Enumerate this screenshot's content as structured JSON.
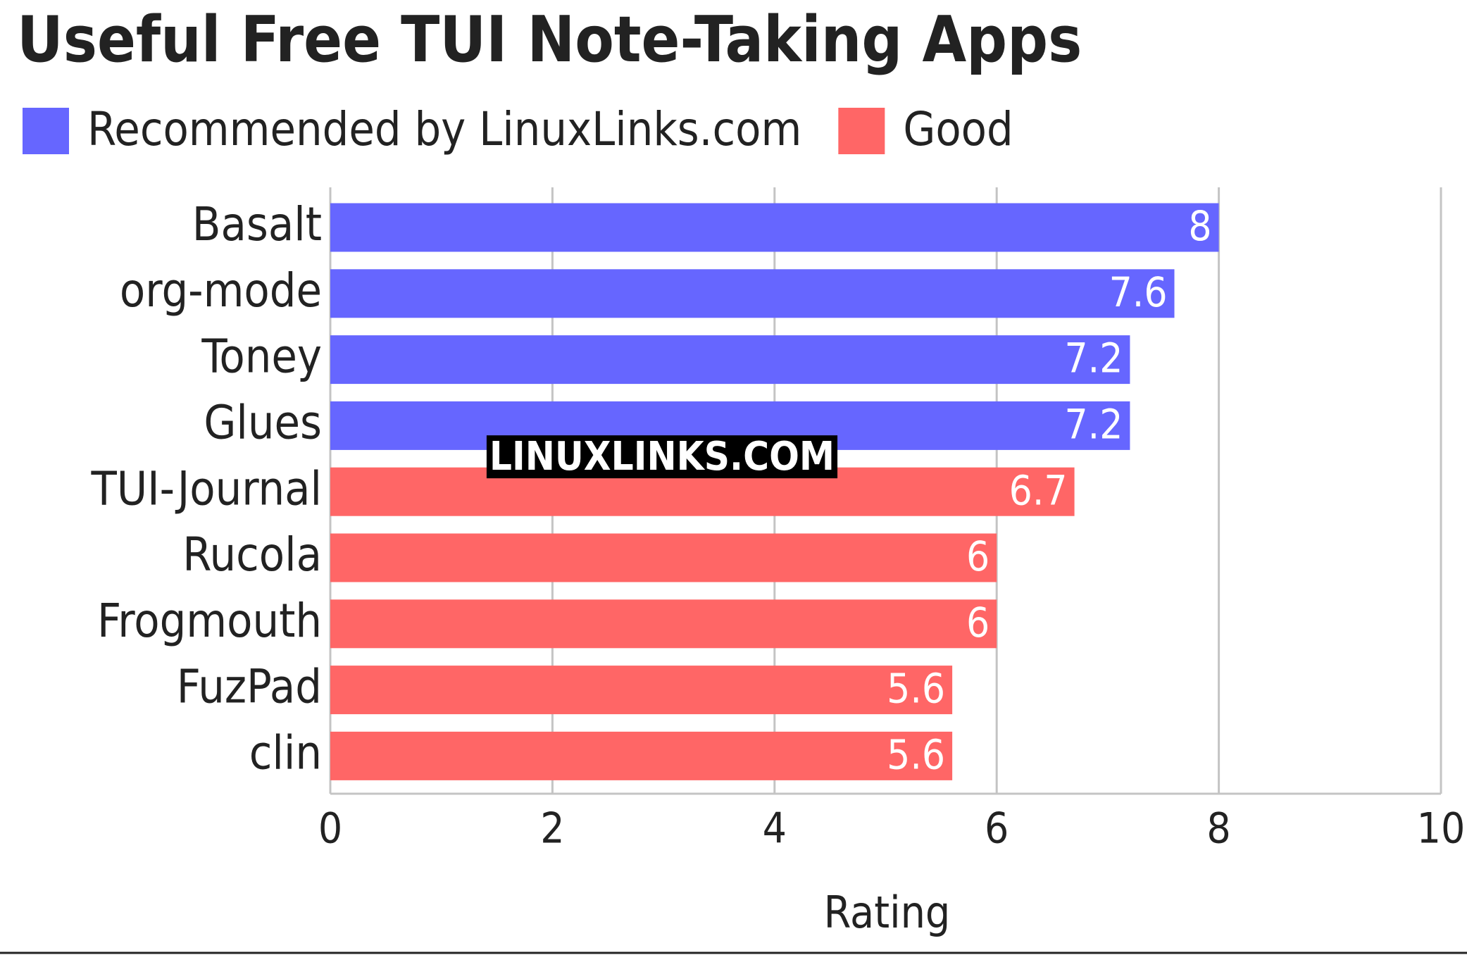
{
  "chart_data": {
    "type": "bar",
    "orientation": "horizontal",
    "title": "Useful Free TUI Note-Taking Apps",
    "categories": [
      "Basalt",
      "org-mode",
      "Toney",
      "Glues",
      "TUI-Journal",
      "Rucola",
      "Frogmouth",
      "FuzPad",
      "clin"
    ],
    "series": [
      {
        "name": "Recommended by LinuxLinks.com",
        "color": "#6666ff",
        "values": [
          8,
          7.6,
          7.2,
          7.2,
          null,
          null,
          null,
          null,
          null
        ]
      },
      {
        "name": "Good",
        "color": "#ff6666",
        "values": [
          null,
          null,
          null,
          null,
          6.7,
          6,
          6,
          5.6,
          5.6
        ]
      }
    ],
    "xlabel": "Rating",
    "xlim": [
      0,
      10
    ],
    "xticks": [
      0,
      2,
      4,
      6,
      8,
      10
    ],
    "grid": true,
    "watermark": "LINUXLINKS.COM"
  }
}
